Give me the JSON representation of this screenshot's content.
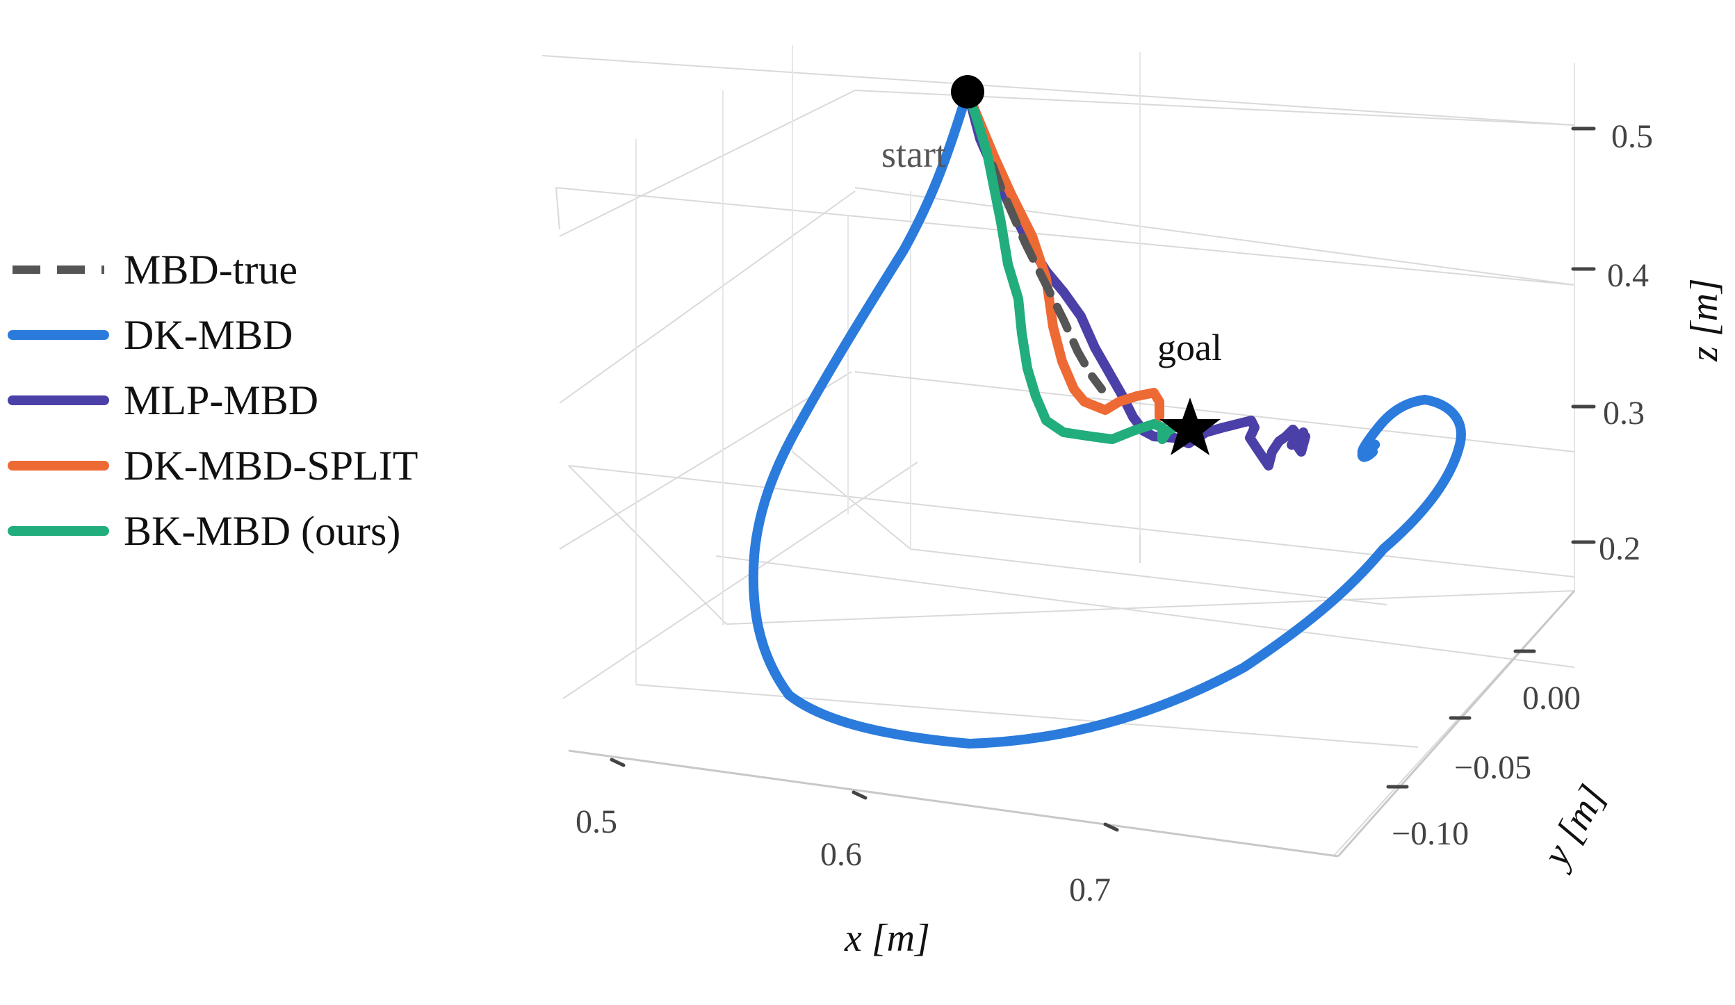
{
  "chart_data": {
    "type": "line",
    "projection": "3d",
    "title": "",
    "xlabel": "x [m]",
    "ylabel": "y [m]",
    "zlabel": "z [m]",
    "x_ticks": [
      "0.5",
      "0.6",
      "0.7"
    ],
    "y_ticks": [
      "0.00",
      "−0.05",
      "−0.10"
    ],
    "z_ticks": [
      "0.5",
      "0.4",
      "0.3",
      "0.2"
    ],
    "grid": true,
    "legend_position": "left",
    "annotations": [
      {
        "label": "start",
        "marker": "circle",
        "color": "#000000"
      },
      {
        "label": "goal",
        "marker": "star",
        "color": "#000000"
      }
    ],
    "series": [
      {
        "name": "MBD-true",
        "color": "#555555",
        "style": "dashed"
      },
      {
        "name": "DK-MBD",
        "color": "#2a7bdc",
        "style": "solid"
      },
      {
        "name": "MLP-MBD",
        "color": "#4b3fa8",
        "style": "solid"
      },
      {
        "name": "DK-MBD-SPLIT",
        "color": "#ee6a35",
        "style": "solid"
      },
      {
        "name": "BK-MBD (ours)",
        "color": "#21ad7c",
        "style": "solid"
      }
    ]
  }
}
